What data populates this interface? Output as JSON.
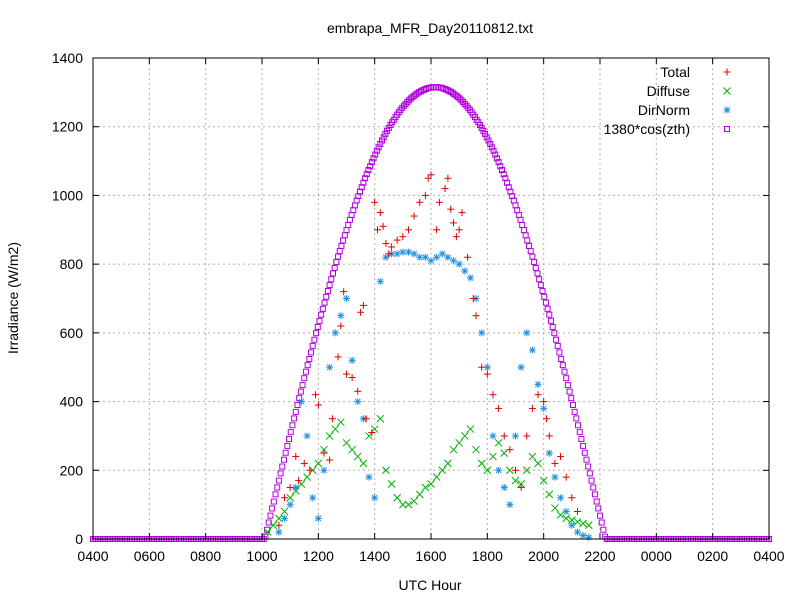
{
  "chart_data": {
    "type": "scatter",
    "title": "embrapa_MFR_Day20110812.txt",
    "xlabel": "UTC Hour",
    "ylabel": "Irradiance (W/m2)",
    "xlim": [
      4,
      28
    ],
    "ylim": [
      0,
      1400
    ],
    "grid": true,
    "legend_position": "top-right",
    "x_ticks": [
      {
        "value": 4,
        "label": "0400"
      },
      {
        "value": 6,
        "label": "0600"
      },
      {
        "value": 8,
        "label": "0800"
      },
      {
        "value": 10,
        "label": "1000"
      },
      {
        "value": 12,
        "label": "1200"
      },
      {
        "value": 14,
        "label": "1400"
      },
      {
        "value": 16,
        "label": "1600"
      },
      {
        "value": 18,
        "label": "1800"
      },
      {
        "value": 20,
        "label": "2000"
      },
      {
        "value": 22,
        "label": "2200"
      },
      {
        "value": 24,
        "label": "0000"
      },
      {
        "value": 26,
        "label": "0200"
      },
      {
        "value": 28,
        "label": "0400"
      }
    ],
    "y_ticks": [
      {
        "value": 0,
        "label": "0"
      },
      {
        "value": 200,
        "label": "200"
      },
      {
        "value": 400,
        "label": "400"
      },
      {
        "value": 600,
        "label": "600"
      },
      {
        "value": 800,
        "label": "800"
      },
      {
        "value": 1000,
        "label": "1000"
      },
      {
        "value": 1200,
        "label": "1200"
      },
      {
        "value": 1400,
        "label": "1400"
      }
    ],
    "series": [
      {
        "name": "Total",
        "marker": "plus",
        "color": "#e00000",
        "x": [
          10.6,
          10.8,
          11.0,
          11.2,
          11.3,
          11.5,
          11.7,
          11.9,
          12.0,
          12.2,
          12.4,
          12.5,
          12.7,
          12.8,
          12.9,
          13.0,
          13.2,
          13.4,
          13.5,
          13.6,
          13.7,
          13.9,
          14.0,
          14.1,
          14.2,
          14.3,
          14.4,
          14.5,
          14.6,
          14.8,
          15.0,
          15.2,
          15.4,
          15.6,
          15.8,
          15.9,
          16.0,
          16.2,
          16.3,
          16.5,
          16.6,
          16.7,
          16.8,
          16.9,
          17.0,
          17.1,
          17.3,
          17.5,
          17.6,
          17.8,
          18.0,
          18.2,
          18.4,
          18.6,
          18.8,
          19.0,
          19.2,
          19.4,
          19.6,
          19.8,
          20.0,
          20.1,
          20.2,
          20.4,
          20.6,
          20.8,
          21.0,
          21.2
        ],
        "y": [
          40,
          120,
          150,
          240,
          170,
          220,
          200,
          420,
          390,
          250,
          230,
          350,
          530,
          620,
          720,
          480,
          470,
          430,
          660,
          680,
          350,
          310,
          980,
          900,
          950,
          910,
          860,
          830,
          850,
          870,
          880,
          900,
          940,
          980,
          1000,
          1050,
          1060,
          900,
          980,
          1020,
          1050,
          960,
          920,
          880,
          900,
          950,
          820,
          700,
          650,
          500,
          480,
          420,
          380,
          300,
          260,
          200,
          150,
          300,
          380,
          420,
          400,
          350,
          300,
          220,
          240,
          180,
          120,
          80
        ]
      },
      {
        "name": "Diffuse",
        "marker": "cross",
        "color": "#00b000",
        "x": [
          10.2,
          10.4,
          10.6,
          10.8,
          11.0,
          11.2,
          11.4,
          11.6,
          11.8,
          12.0,
          12.2,
          12.4,
          12.6,
          12.8,
          13.0,
          13.2,
          13.4,
          13.6,
          13.8,
          14.0,
          14.2,
          14.4,
          14.6,
          14.8,
          15.0,
          15.2,
          15.4,
          15.6,
          15.8,
          16.0,
          16.2,
          16.4,
          16.6,
          16.8,
          17.0,
          17.2,
          17.4,
          17.6,
          17.8,
          18.0,
          18.2,
          18.4,
          18.6,
          18.8,
          19.0,
          19.2,
          19.4,
          19.6,
          19.8,
          20.0,
          20.2,
          20.4,
          20.6,
          20.8,
          21.0,
          21.2,
          21.4,
          21.6
        ],
        "y": [
          20,
          40,
          60,
          80,
          120,
          140,
          160,
          180,
          200,
          220,
          260,
          300,
          320,
          340,
          280,
          260,
          240,
          220,
          300,
          320,
          350,
          200,
          160,
          120,
          100,
          100,
          110,
          130,
          150,
          160,
          180,
          200,
          220,
          260,
          280,
          300,
          320,
          260,
          220,
          200,
          240,
          280,
          250,
          200,
          170,
          160,
          200,
          240,
          220,
          170,
          130,
          90,
          70,
          60,
          55,
          50,
          45,
          40
        ]
      },
      {
        "name": "DirNorm",
        "marker": "star",
        "color": "#2090e0",
        "x": [
          10.6,
          10.8,
          11.0,
          11.2,
          11.4,
          11.6,
          11.8,
          12.0,
          12.2,
          12.4,
          12.6,
          12.8,
          13.0,
          13.2,
          13.4,
          13.6,
          13.8,
          14.0,
          14.2,
          14.4,
          14.6,
          14.8,
          15.0,
          15.2,
          15.4,
          15.6,
          15.8,
          16.0,
          16.2,
          16.4,
          16.6,
          16.8,
          17.0,
          17.2,
          17.4,
          17.6,
          17.8,
          18.0,
          18.2,
          18.4,
          18.6,
          18.8,
          19.0,
          19.2,
          19.4,
          19.6,
          19.8,
          20.0,
          20.2,
          20.4,
          20.6,
          20.8,
          21.0,
          21.2,
          21.4,
          21.6
        ],
        "y": [
          20,
          60,
          100,
          150,
          400,
          300,
          120,
          60,
          200,
          500,
          600,
          650,
          700,
          520,
          400,
          350,
          180,
          120,
          750,
          820,
          830,
          830,
          835,
          835,
          830,
          820,
          820,
          810,
          820,
          830,
          820,
          810,
          800,
          780,
          760,
          700,
          600,
          500,
          300,
          200,
          150,
          100,
          300,
          500,
          600,
          550,
          450,
          380,
          250,
          180,
          120,
          80,
          40,
          20,
          10,
          5
        ]
      },
      {
        "name": "1380*cos(zth)",
        "marker": "square",
        "color": "#b000e0",
        "x": [],
        "y": []
      }
    ]
  }
}
